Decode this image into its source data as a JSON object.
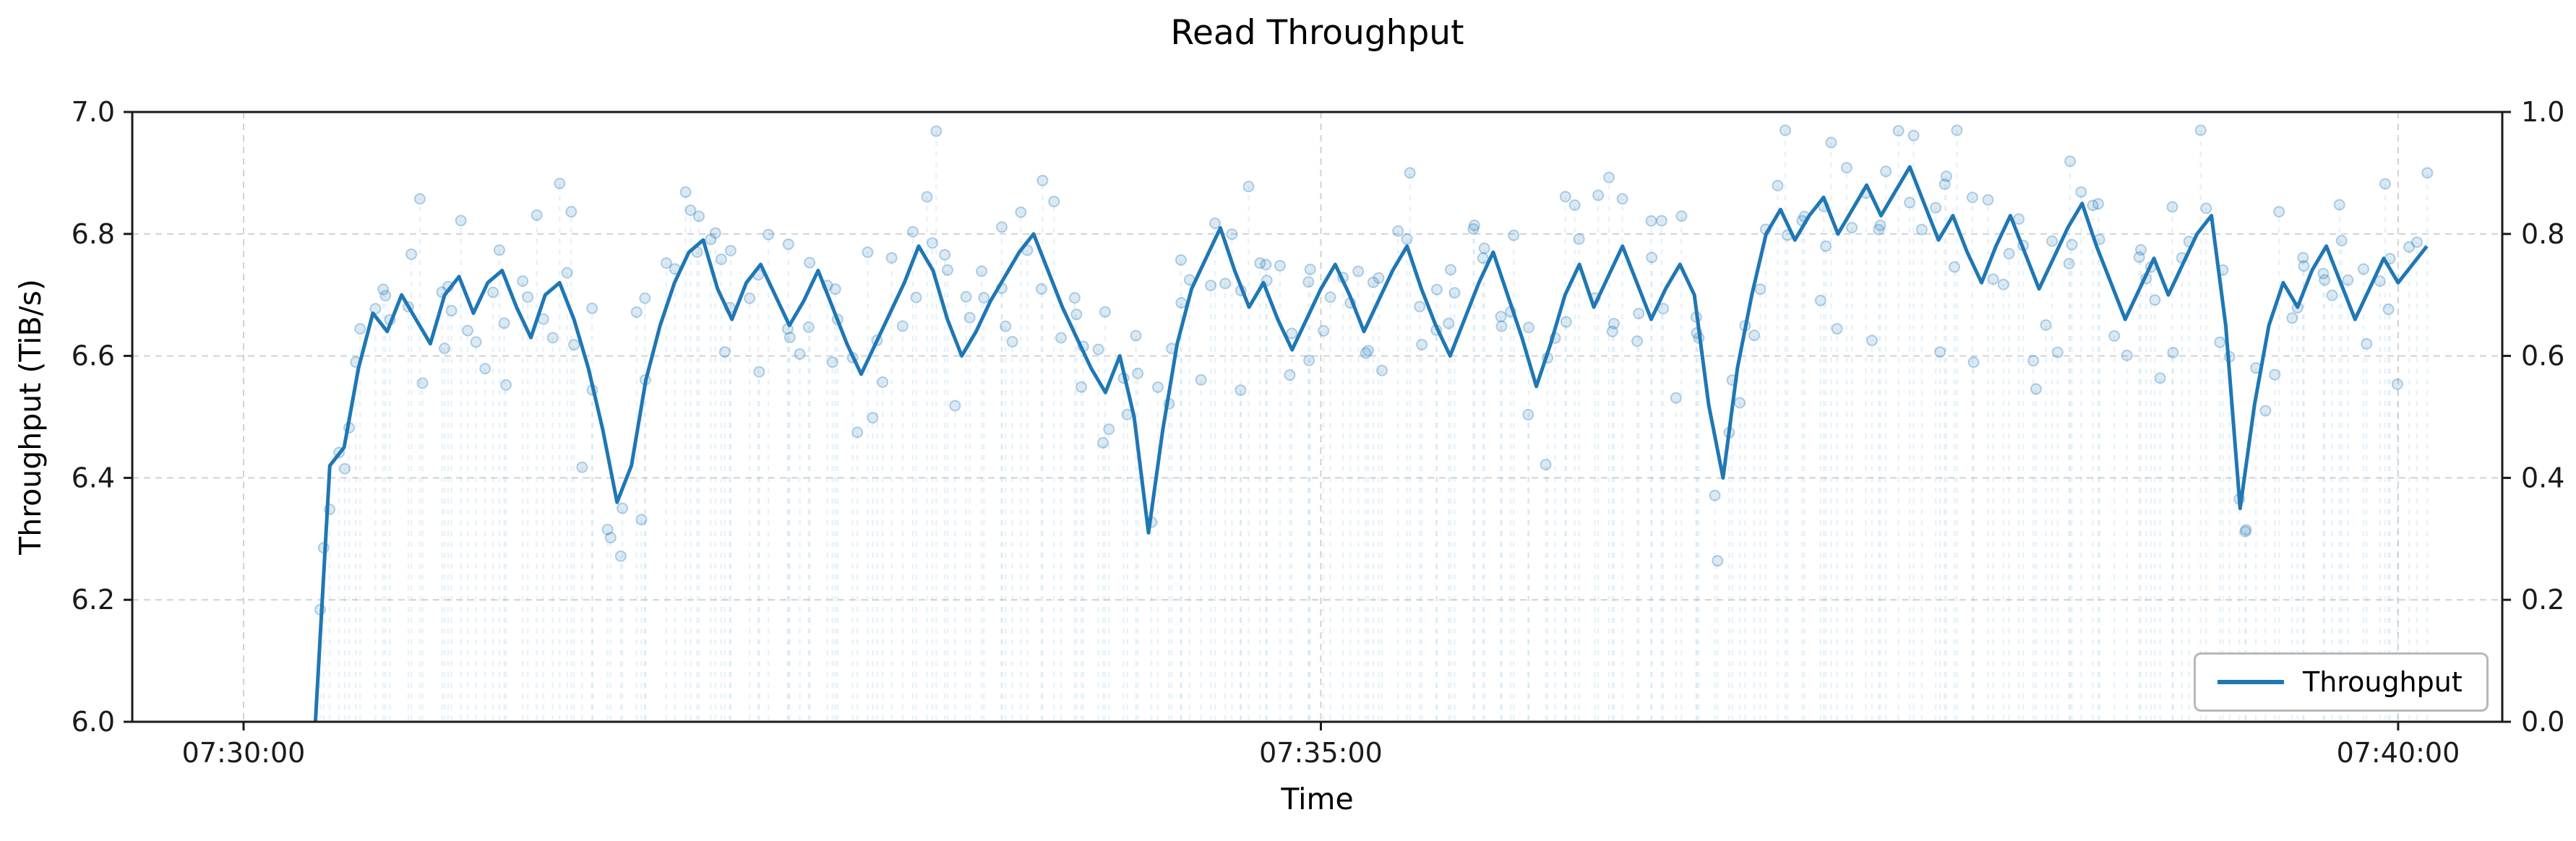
{
  "chart_data": {
    "type": "line",
    "title": "Read Throughput",
    "xlabel": "Time",
    "ylabel": "Throughput (TiB/s)",
    "grid": {
      "show": true,
      "style": "dashed",
      "color": "#d2d2d2"
    },
    "frame_color": "#1a1a1a",
    "time_origin": "07:30:00",
    "xlim_seconds": [
      -31,
      629
    ],
    "x_ticks": [
      {
        "t": 0,
        "label": "07:30:00"
      },
      {
        "t": 300,
        "label": "07:35:00"
      },
      {
        "t": 600,
        "label": "07:40:00"
      }
    ],
    "y_left": {
      "min": 6.0,
      "max": 7.0,
      "ticks": [
        "6.0",
        "6.2",
        "6.4",
        "6.6",
        "6.8",
        "7.0"
      ]
    },
    "y_right": {
      "min": 0.0,
      "max": 1.0,
      "ticks": [
        "0.0",
        "0.2",
        "0.4",
        "0.6",
        "0.8",
        "1.0"
      ]
    },
    "legend": {
      "position": "lower right",
      "entries": [
        {
          "label": "Throughput",
          "color": "#1f77b4"
        }
      ]
    },
    "series": [
      {
        "name": "Throughput",
        "color": "#1f77b4",
        "line_width": 5,
        "x_start": 20,
        "x_step": 4,
        "values": [
          6.0,
          6.42,
          6.45,
          6.58,
          6.67,
          6.64,
          6.7,
          6.66,
          6.62,
          6.7,
          6.73,
          6.67,
          6.72,
          6.74,
          6.68,
          6.63,
          6.7,
          6.72,
          6.66,
          6.58,
          6.48,
          6.36,
          6.42,
          6.56,
          6.65,
          6.72,
          6.77,
          6.79,
          6.71,
          6.66,
          6.72,
          6.75,
          6.7,
          6.65,
          6.69,
          6.74,
          6.68,
          6.62,
          6.57,
          6.62,
          6.67,
          6.72,
          6.78,
          6.74,
          6.66,
          6.6,
          6.64,
          6.69,
          6.73,
          6.77,
          6.8,
          6.74,
          6.68,
          6.63,
          6.58,
          6.54,
          6.6,
          6.5,
          6.31,
          6.48,
          6.62,
          6.71,
          6.76,
          6.81,
          6.74,
          6.68,
          6.72,
          6.66,
          6.61,
          6.66,
          6.71,
          6.75,
          6.7,
          6.64,
          6.69,
          6.74,
          6.78,
          6.71,
          6.65,
          6.6,
          6.66,
          6.72,
          6.77,
          6.7,
          6.63,
          6.55,
          6.62,
          6.7,
          6.75,
          6.68,
          6.73,
          6.78,
          6.72,
          6.66,
          6.71,
          6.75,
          6.7,
          6.52,
          6.4,
          6.58,
          6.7,
          6.8,
          6.84,
          6.79,
          6.83,
          6.86,
          6.8,
          6.84,
          6.88,
          6.83,
          6.87,
          6.91,
          6.85,
          6.79,
          6.83,
          6.77,
          6.72,
          6.78,
          6.83,
          6.77,
          6.71,
          6.76,
          6.81,
          6.85,
          6.78,
          6.72,
          6.66,
          6.71,
          6.76,
          6.7,
          6.75,
          6.8,
          6.83,
          6.65,
          6.35,
          6.52,
          6.65,
          6.72,
          6.68,
          6.74,
          6.78,
          6.72,
          6.66,
          6.71,
          6.76,
          6.72,
          6.75,
          6.78
        ]
      }
    ],
    "scatter": {
      "name": "raw-samples",
      "color": "#1f77b4",
      "fill_opacity": 0.16,
      "stroke_opacity": 0.32,
      "radius": 7,
      "jitter_std": 0.085,
      "samples_per_segment": 2,
      "seed": 42,
      "stem": {
        "style": "dashed",
        "color": "#8ebcde",
        "opacity": 0.2
      }
    }
  }
}
